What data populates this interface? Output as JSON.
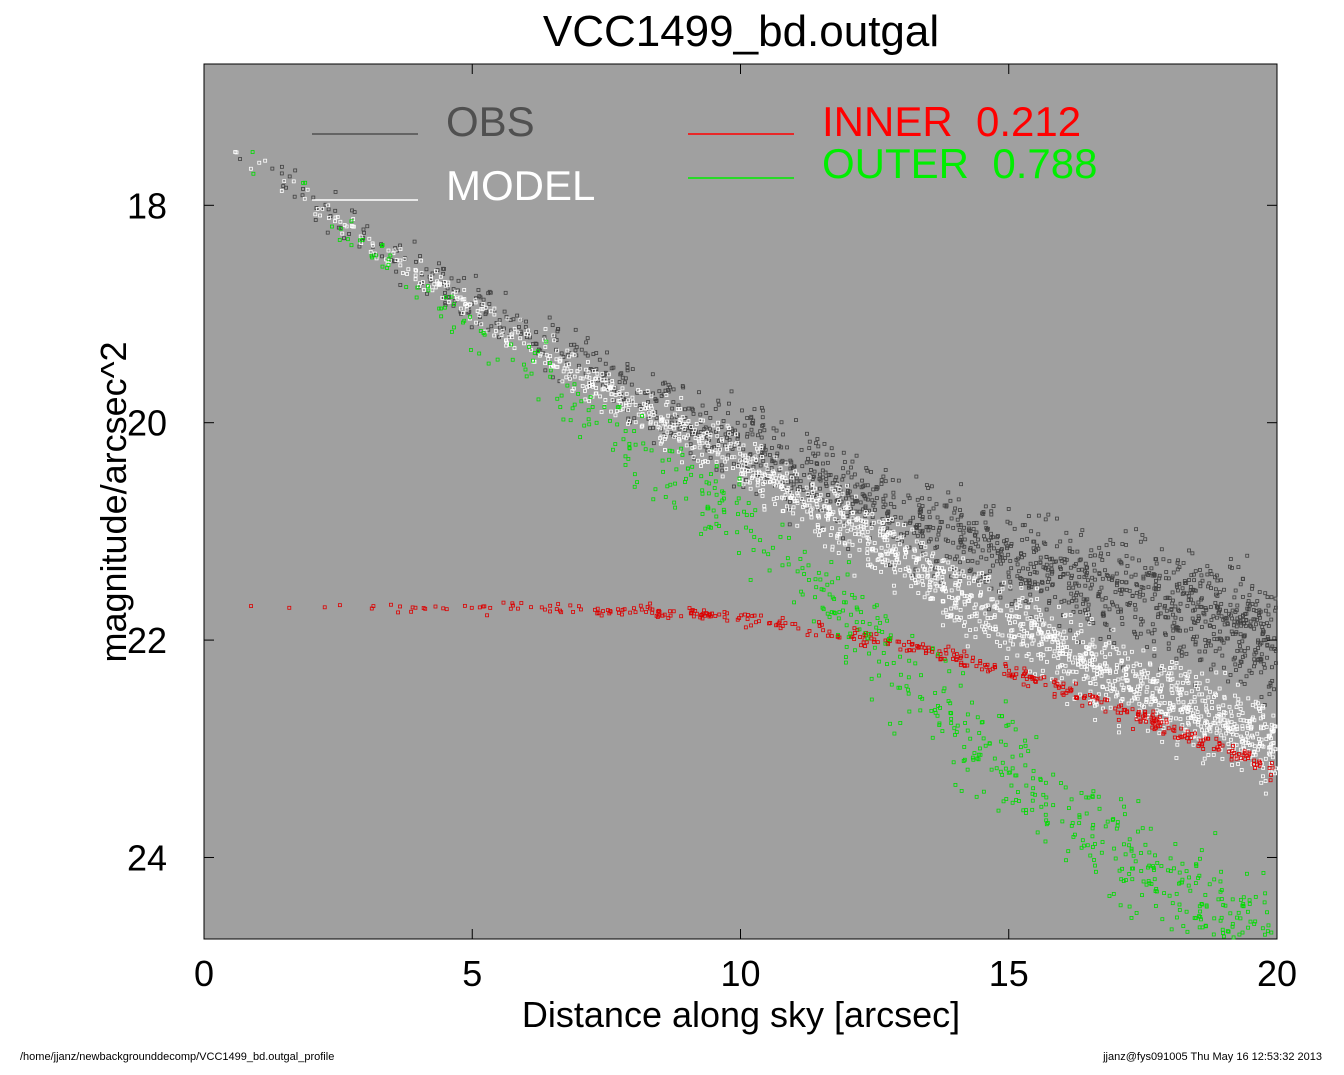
{
  "chart_data": {
    "type": "scatter",
    "title": "VCC1499_bd.outgal",
    "xlabel": "Distance along sky [arcsec]",
    "ylabel": "magnitude/arcsec^2",
    "xlim": [
      0,
      20
    ],
    "ylim": [
      24.75,
      16.7
    ],
    "y_inverted": true,
    "xticks": [
      0,
      5,
      10,
      15,
      20
    ],
    "yticks": [
      18,
      20,
      22,
      24
    ],
    "background_color": "#a0a0a0",
    "grid": false,
    "legend": [
      {
        "label": "OBS",
        "color": "#505050"
      },
      {
        "label": "MODEL",
        "color": "#ffffff"
      },
      {
        "label": "INNER  0.212",
        "color": "#ff0000"
      },
      {
        "label": "OUTER  0.788",
        "color": "#00ee00"
      }
    ],
    "series": [
      {
        "name": "OBS",
        "color": "#404040",
        "trend": [
          [
            0.4,
            17.45
          ],
          [
            2,
            17.95
          ],
          [
            5,
            18.9
          ],
          [
            8,
            19.7
          ],
          [
            10,
            20.2
          ],
          [
            12,
            20.65
          ],
          [
            15,
            21.25
          ],
          [
            18,
            21.7
          ],
          [
            20,
            22.0
          ]
        ],
        "scatter_mag": 0.55
      },
      {
        "name": "MODEL",
        "color": "#ffffff",
        "trend": [
          [
            0.4,
            17.45
          ],
          [
            2,
            18.0
          ],
          [
            5,
            18.95
          ],
          [
            8,
            19.85
          ],
          [
            10,
            20.35
          ],
          [
            12,
            20.95
          ],
          [
            14,
            21.55
          ],
          [
            16,
            22.1
          ],
          [
            18,
            22.55
          ],
          [
            20,
            23.0
          ]
        ],
        "scatter_mag": 0.4
      },
      {
        "name": "INNER",
        "color": "#dd0000",
        "trend": [
          [
            0.6,
            21.7
          ],
          [
            4,
            21.7
          ],
          [
            7,
            21.72
          ],
          [
            9,
            21.75
          ],
          [
            10,
            21.8
          ],
          [
            12,
            21.95
          ],
          [
            14,
            22.15
          ],
          [
            16,
            22.45
          ],
          [
            18,
            22.8
          ],
          [
            20,
            23.2
          ]
        ],
        "scatter_mag": 0.1
      },
      {
        "name": "OUTER",
        "color": "#00dd00",
        "trend": [
          [
            0.4,
            17.45
          ],
          [
            2,
            18.0
          ],
          [
            5,
            19.1
          ],
          [
            8,
            20.2
          ],
          [
            10,
            20.9
          ],
          [
            12,
            21.8
          ],
          [
            14,
            22.8
          ],
          [
            16,
            23.6
          ],
          [
            18,
            24.3
          ],
          [
            20,
            24.7
          ]
        ],
        "scatter_mag": 0.6
      }
    ]
  },
  "footer": {
    "left": "/home/jjanz/newbackgrounddecomp/VCC1499_bd.outgal_profile",
    "right": "jjanz@fys091005  Thu May 16 12:53:32 2013"
  }
}
